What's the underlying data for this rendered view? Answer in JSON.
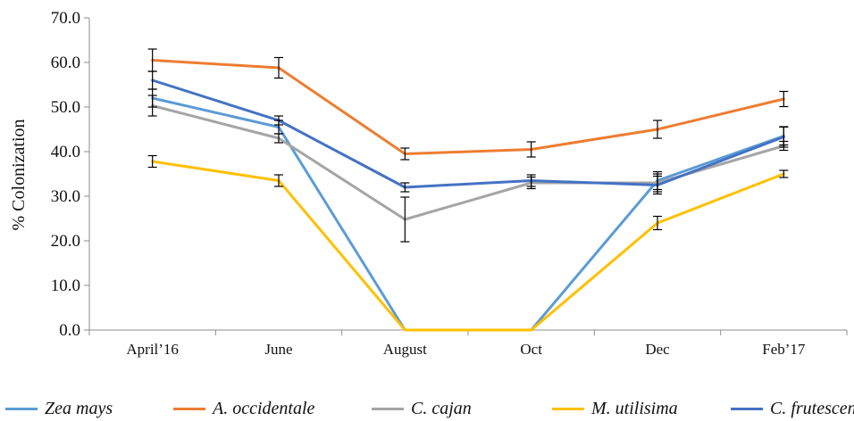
{
  "chart_data": {
    "type": "line",
    "title": "",
    "xlabel": "",
    "ylabel": "% Colonization",
    "ylim": [
      0,
      70
    ],
    "y_ticks": [
      "0.0",
      "10.0",
      "20.0",
      "30.0",
      "40.0",
      "50.0",
      "60.0",
      "70.0"
    ],
    "categories": [
      "April’16",
      "June",
      "August",
      "Oct",
      "Dec",
      "Feb’17"
    ],
    "grid": false,
    "legend_position": "bottom",
    "series": [
      {
        "name": "Zea mays",
        "color": "#5b9bd5",
        "values": [
          52.0,
          45.5,
          0.0,
          0.0,
          33.5,
          43.5
        ],
        "errors": [
          2.0,
          1.5,
          0.0,
          0.0,
          2.0,
          2.0
        ]
      },
      {
        "name": "A. occidentale",
        "color": "#ed7d31",
        "values": [
          60.5,
          58.8,
          39.5,
          40.5,
          45.0,
          51.8
        ],
        "errors": [
          2.5,
          2.3,
          1.3,
          1.7,
          2.0,
          1.7
        ]
      },
      {
        "name": "C. cajan",
        "color": "#a5a5a5",
        "values": [
          50.3,
          43.0,
          24.8,
          33.0,
          33.0,
          41.3
        ],
        "errors": [
          2.3,
          1.0,
          5.0,
          1.3,
          2.0,
          1.0
        ]
      },
      {
        "name": "M. utilisima",
        "color": "#ffc000",
        "values": [
          37.8,
          33.5,
          0.0,
          0.0,
          24.0,
          35.0
        ],
        "errors": [
          1.3,
          1.3,
          0.0,
          0.0,
          1.5,
          0.8
        ]
      },
      {
        "name": "C. frutescent",
        "color": "#4472c4",
        "values": [
          56.0,
          47.0,
          32.0,
          33.5,
          32.5,
          43.3
        ],
        "errors": [
          2.0,
          1.0,
          1.0,
          1.3,
          2.0,
          2.3
        ]
      }
    ]
  }
}
